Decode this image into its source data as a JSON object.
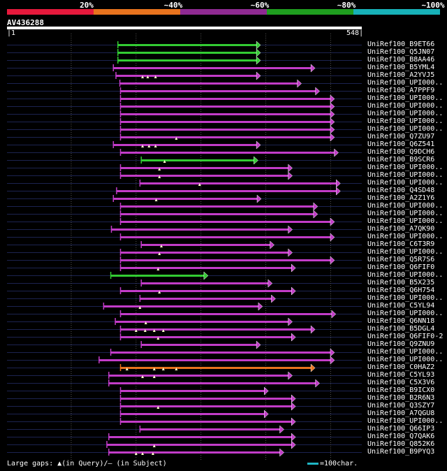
{
  "legend": [
    {
      "label": "20%",
      "color": "#e6193c"
    },
    {
      "label": "~40%",
      "color": "#e8731e"
    },
    {
      "label": "~60%",
      "color": "#8f2a92"
    },
    {
      "label": "~80%",
      "color": "#1f9e1f"
    },
    {
      "label": "~100%",
      "color": "#17b1b8"
    }
  ],
  "query": {
    "name": "AV436288",
    "start": "1",
    "end": "548",
    "length": 548
  },
  "footer": {
    "text": "Large gaps: ▲(in Query)/— (in Subject)",
    "scale": "=100char."
  },
  "colors": {
    "green": "#33cc33",
    "magenta": "#c23cc8",
    "orange": "#e8731e",
    "grid": "#555555",
    "track": "#1c2350"
  },
  "chart_data": {
    "type": "alignment-overview",
    "x_range": [
      1,
      548
    ],
    "hits": [
      {
        "name": "UniRef100_B9ET66",
        "start": 172,
        "end": 392,
        "color": "green",
        "gaps": []
      },
      {
        "name": "UniRef100_Q5JN07",
        "start": 172,
        "end": 392,
        "color": "green",
        "gaps": []
      },
      {
        "name": "UniRef100_B8AA46",
        "start": 172,
        "end": 392,
        "color": "green",
        "gaps": []
      },
      {
        "name": "UniRef100_B5YML4",
        "start": 165,
        "end": 476,
        "color": "magenta",
        "gaps": []
      },
      {
        "name": "UniRef100_A2YVJ5",
        "start": 169,
        "end": 392,
        "color": "magenta",
        "gaps": [
          210,
          218,
          230
        ]
      },
      {
        "name": "UniRef100_UPI000..",
        "start": 175,
        "end": 455,
        "color": "magenta",
        "gaps": []
      },
      {
        "name": "UniRef100_A7PPF9",
        "start": 176,
        "end": 483,
        "color": "magenta",
        "gaps": []
      },
      {
        "name": "UniRef100_UPI000..",
        "start": 176,
        "end": 506,
        "color": "magenta",
        "gaps": []
      },
      {
        "name": "UniRef100_UPI000..",
        "start": 176,
        "end": 506,
        "color": "magenta",
        "gaps": []
      },
      {
        "name": "UniRef100_UPI000..",
        "start": 176,
        "end": 506,
        "color": "magenta",
        "gaps": []
      },
      {
        "name": "UniRef100_UPI000..",
        "start": 176,
        "end": 506,
        "color": "magenta",
        "gaps": []
      },
      {
        "name": "UniRef100_UPI000..",
        "start": 176,
        "end": 506,
        "color": "magenta",
        "gaps": []
      },
      {
        "name": "UniRef100_Q7ZU97",
        "start": 176,
        "end": 506,
        "color": "magenta",
        "gaps": [
          262
        ]
      },
      {
        "name": "UniRef100_Q6Z541",
        "start": 165,
        "end": 392,
        "color": "magenta",
        "gaps": [
          210,
          220,
          230
        ]
      },
      {
        "name": "UniRef100_Q9DCH6",
        "start": 176,
        "end": 512,
        "color": "magenta",
        "gaps": []
      },
      {
        "name": "UniRef100_B9SCR6",
        "start": 208,
        "end": 388,
        "color": "green",
        "gaps": [
          244
        ]
      },
      {
        "name": "UniRef100_UPI000..",
        "start": 176,
        "end": 441,
        "color": "magenta",
        "gaps": [
          236
        ]
      },
      {
        "name": "UniRef100_UPI000..",
        "start": 176,
        "end": 441,
        "color": "magenta",
        "gaps": [
          236
        ]
      },
      {
        "name": "UniRef100_UPI000..",
        "start": 206,
        "end": 515,
        "color": "magenta",
        "gaps": [
          298
        ]
      },
      {
        "name": "UniRef100_Q4SD48",
        "start": 170,
        "end": 515,
        "color": "magenta",
        "gaps": []
      },
      {
        "name": "UniRef100_A2Z1Y6",
        "start": 165,
        "end": 393,
        "color": "magenta",
        "gaps": [
          231
        ]
      },
      {
        "name": "UniRef100_UPI000..",
        "start": 176,
        "end": 480,
        "color": "magenta",
        "gaps": []
      },
      {
        "name": "UniRef100_UPI000..",
        "start": 176,
        "end": 480,
        "color": "magenta",
        "gaps": []
      },
      {
        "name": "UniRef100_UPI000..",
        "start": 176,
        "end": 506,
        "color": "magenta",
        "gaps": []
      },
      {
        "name": "UniRef100_A7QK90",
        "start": 162,
        "end": 441,
        "color": "magenta",
        "gaps": []
      },
      {
        "name": "UniRef100_UPI000..",
        "start": 176,
        "end": 506,
        "color": "magenta",
        "gaps": []
      },
      {
        "name": "UniRef100_C6T3R9",
        "start": 208,
        "end": 413,
        "color": "magenta",
        "gaps": [
          239
        ]
      },
      {
        "name": "UniRef100_UPI000..",
        "start": 176,
        "end": 441,
        "color": "magenta",
        "gaps": [
          236
        ]
      },
      {
        "name": "UniRef100_Q5R7S6",
        "start": 176,
        "end": 506,
        "color": "magenta",
        "gaps": []
      },
      {
        "name": "UniRef100_Q6FIF0",
        "start": 176,
        "end": 446,
        "color": "magenta",
        "gaps": [
          234
        ]
      },
      {
        "name": "UniRef100_UPI000..",
        "start": 161,
        "end": 311,
        "color": "green",
        "gaps": []
      },
      {
        "name": "UniRef100_B5X235",
        "start": 208,
        "end": 410,
        "color": "magenta",
        "gaps": []
      },
      {
        "name": "UniRef100_Q6H754",
        "start": 176,
        "end": 446,
        "color": "magenta",
        "gaps": [
          236
        ]
      },
      {
        "name": "UniRef100_UPI000..",
        "start": 206,
        "end": 415,
        "color": "magenta",
        "gaps": []
      },
      {
        "name": "UniRef100_C5YL94",
        "start": 150,
        "end": 395,
        "color": "magenta",
        "gaps": [
          206
        ]
      },
      {
        "name": "UniRef100_UPI000..",
        "start": 176,
        "end": 508,
        "color": "magenta",
        "gaps": []
      },
      {
        "name": "UniRef100_Q6NN18",
        "start": 168,
        "end": 441,
        "color": "magenta",
        "gaps": [
          215
        ]
      },
      {
        "name": "UniRef100_B5DGL4",
        "start": 176,
        "end": 476,
        "color": "magenta",
        "gaps": [
          200,
          214,
          228,
          242
        ]
      },
      {
        "name": "UniRef100_Q6FIF0-2",
        "start": 176,
        "end": 446,
        "color": "magenta",
        "gaps": [
          234
        ]
      },
      {
        "name": "UniRef100_Q9ZNU9",
        "start": 208,
        "end": 392,
        "color": "magenta",
        "gaps": []
      },
      {
        "name": "UniRef100_UPI000..",
        "start": 161,
        "end": 506,
        "color": "magenta",
        "gaps": []
      },
      {
        "name": "UniRef100_UPI000..",
        "start": 143,
        "end": 506,
        "color": "magenta",
        "gaps": []
      },
      {
        "name": "UniRef100_C0HAZ2",
        "start": 176,
        "end": 476,
        "color": "orange",
        "gaps": [
          186,
          228,
          242,
          262
        ]
      },
      {
        "name": "UniRef100_C5YL93",
        "start": 158,
        "end": 441,
        "color": "magenta",
        "gaps": [
          210,
          228
        ]
      },
      {
        "name": "UniRef100_C5X3V6",
        "start": 158,
        "end": 483,
        "color": "magenta",
        "gaps": []
      },
      {
        "name": "UniRef100_B9ICX0",
        "start": 176,
        "end": 404,
        "color": "magenta",
        "gaps": []
      },
      {
        "name": "UniRef100_B2R6N3",
        "start": 176,
        "end": 446,
        "color": "magenta",
        "gaps": []
      },
      {
        "name": "UniRef100_Q3SZY7",
        "start": 176,
        "end": 446,
        "color": "magenta",
        "gaps": [
          234
        ]
      },
      {
        "name": "UniRef100_A7QGU8",
        "start": 176,
        "end": 404,
        "color": "magenta",
        "gaps": []
      },
      {
        "name": "UniRef100_UPI000..",
        "start": 176,
        "end": 446,
        "color": "magenta",
        "gaps": []
      },
      {
        "name": "UniRef100_Q66IP3",
        "start": 206,
        "end": 428,
        "color": "magenta",
        "gaps": []
      },
      {
        "name": "UniRef100_Q7QAK6",
        "start": 158,
        "end": 446,
        "color": "magenta",
        "gaps": []
      },
      {
        "name": "UniRef100_Q852K6",
        "start": 155,
        "end": 446,
        "color": "magenta",
        "gaps": [
          228
        ]
      },
      {
        "name": "UniRef100_B9PYQ3",
        "start": 158,
        "end": 428,
        "color": "magenta",
        "gaps": [
          200,
          210,
          226
        ]
      }
    ]
  }
}
